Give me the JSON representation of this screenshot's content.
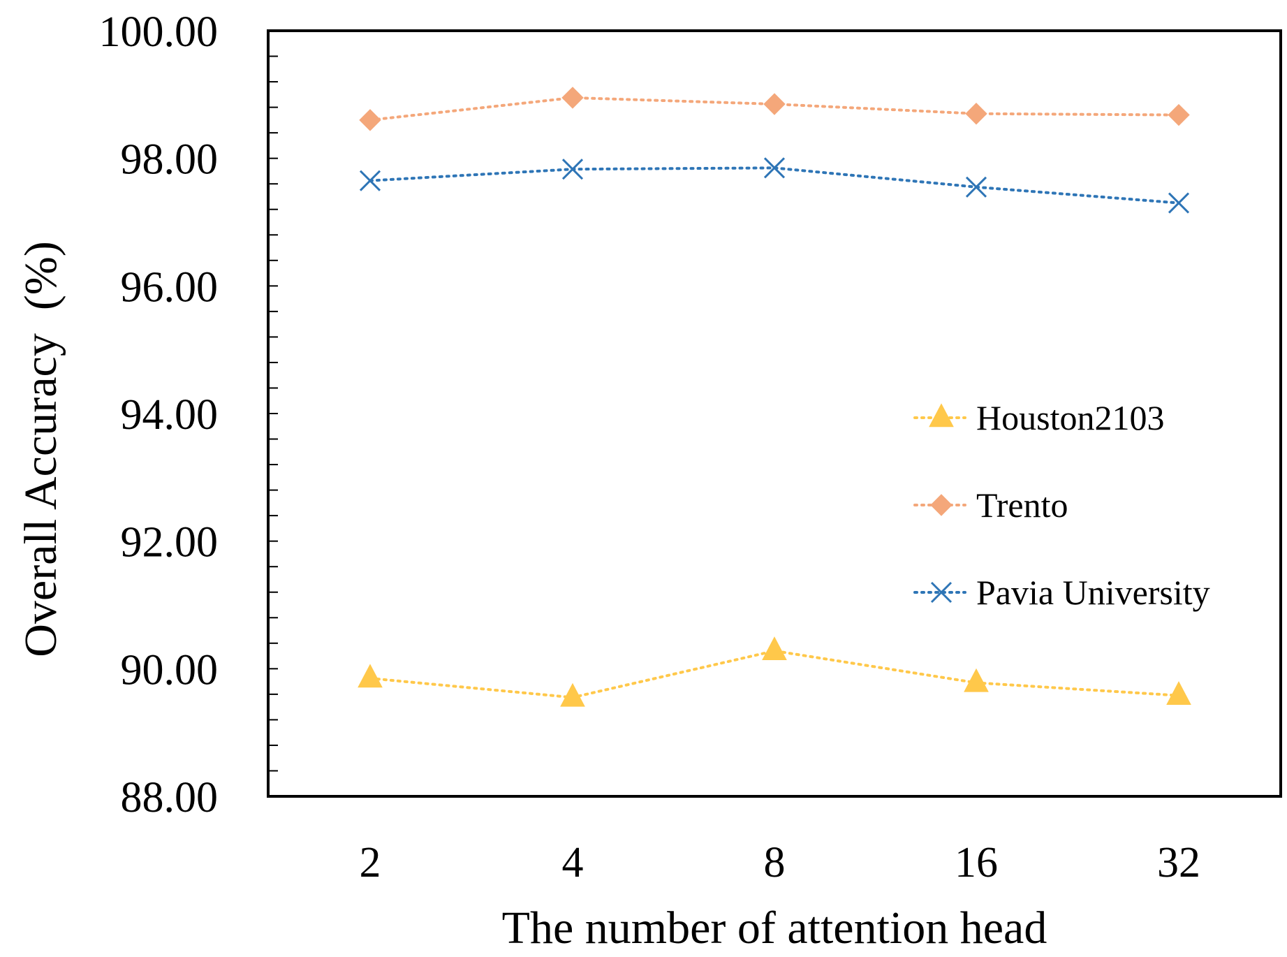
{
  "chart_data": {
    "type": "line",
    "title": "",
    "xlabel": "The number of attention head",
    "ylabel": "Overall Accuracy  (%)",
    "categories": [
      "2",
      "4",
      "8",
      "16",
      "32"
    ],
    "ylim": [
      88,
      100
    ],
    "yticks": [
      88,
      90,
      92,
      94,
      96,
      98,
      100
    ],
    "ytick_labels": [
      "88.00",
      "90.00",
      "92.00",
      "94.00",
      "96.00",
      "98.00",
      "100.00"
    ],
    "y_minor_step": 0.4,
    "grid": false,
    "legend_position": "right-center",
    "series": [
      {
        "name": "Houston2103",
        "values": [
          89.85,
          89.55,
          90.28,
          89.78,
          89.58
        ],
        "color": "#FFC84A",
        "marker": "triangle",
        "line_style": "dotted"
      },
      {
        "name": "Trento",
        "values": [
          98.6,
          98.95,
          98.85,
          98.7,
          98.68
        ],
        "color": "#F4A77A",
        "marker": "diamond",
        "line_style": "dotted"
      },
      {
        "name": "Pavia University",
        "values": [
          97.65,
          97.83,
          97.85,
          97.55,
          97.3
        ],
        "color": "#2E75B6",
        "marker": "x",
        "line_style": "dotted"
      }
    ]
  }
}
